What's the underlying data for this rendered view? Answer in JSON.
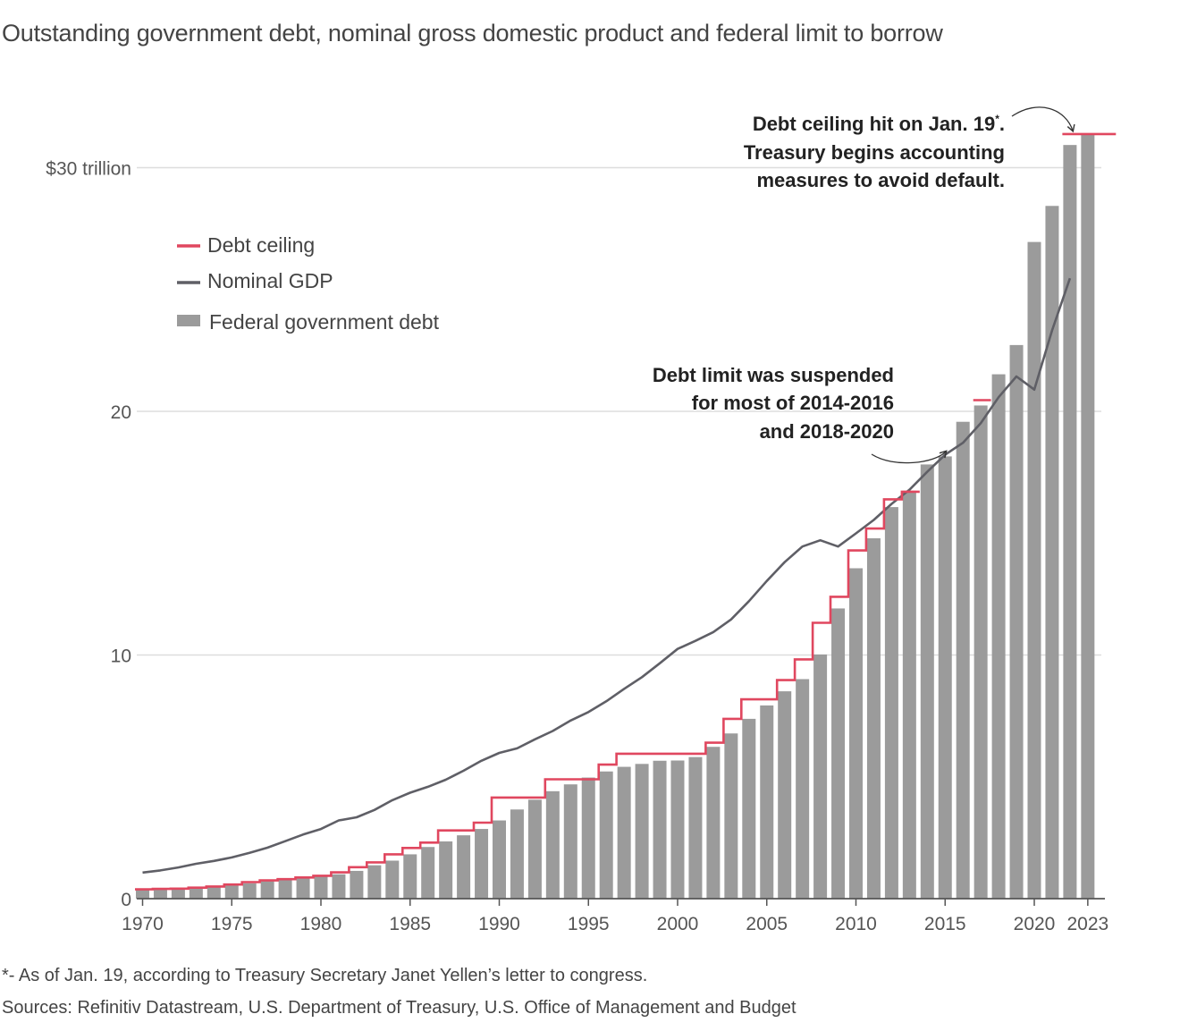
{
  "chart_data": {
    "type": "bar",
    "title": "Outstanding government debt, nominal gross domestic product and federal limit to borrow",
    "ylim": [
      0,
      31
    ],
    "y_ticks": [
      {
        "value": 30,
        "label": "$30 trillion"
      },
      {
        "value": 20,
        "label": "20"
      },
      {
        "value": 10,
        "label": "10"
      },
      {
        "value": 0,
        "label": "0"
      }
    ],
    "x_ticks": [
      {
        "year": 1970,
        "label": "1970"
      },
      {
        "year": 1975,
        "label": "1975"
      },
      {
        "year": 1980,
        "label": "1980"
      },
      {
        "year": 1985,
        "label": "1985"
      },
      {
        "year": 1990,
        "label": "1990"
      },
      {
        "year": 1995,
        "label": "1995"
      },
      {
        "year": 2000,
        "label": "2000"
      },
      {
        "year": 2005,
        "label": "2005"
      },
      {
        "year": 2010,
        "label": "2010"
      },
      {
        "year": 2015,
        "label": "2015"
      },
      {
        "year": 2020,
        "label": "2020"
      },
      {
        "year": 2023,
        "label": "2023"
      }
    ],
    "grid": true,
    "legend_position": "top-left",
    "colors": {
      "debt_ceiling": "#e0475f",
      "nominal_gdp": "#5f5f66",
      "federal_debt": "#9b9b9b",
      "grid": "#dddddd",
      "axis": "#555555"
    },
    "series": [
      {
        "name": "Federal government debt",
        "kind": "bar",
        "x": [
          1970,
          1971,
          1972,
          1973,
          1974,
          1975,
          1976,
          1977,
          1978,
          1979,
          1980,
          1981,
          1982,
          1983,
          1984,
          1985,
          1986,
          1987,
          1988,
          1989,
          1990,
          1991,
          1992,
          1993,
          1994,
          1995,
          1996,
          1997,
          1998,
          1999,
          2000,
          2001,
          2002,
          2003,
          2004,
          2005,
          2006,
          2007,
          2008,
          2009,
          2010,
          2011,
          2012,
          2013,
          2014,
          2015,
          2016,
          2017,
          2018,
          2019,
          2020,
          2021,
          2022,
          2023
        ],
        "values": [
          0.38,
          0.41,
          0.44,
          0.47,
          0.48,
          0.54,
          0.63,
          0.71,
          0.78,
          0.83,
          0.91,
          1.0,
          1.14,
          1.37,
          1.56,
          1.82,
          2.12,
          2.35,
          2.6,
          2.86,
          3.21,
          3.66,
          4.06,
          4.41,
          4.69,
          4.97,
          5.22,
          5.41,
          5.53,
          5.66,
          5.67,
          5.81,
          6.23,
          6.78,
          7.38,
          7.93,
          8.51,
          9.01,
          10.02,
          11.91,
          13.56,
          14.79,
          16.07,
          16.74,
          17.82,
          18.15,
          19.57,
          20.24,
          21.52,
          22.72,
          26.95,
          28.43,
          30.93,
          31.4
        ]
      },
      {
        "name": "Nominal GDP",
        "kind": "line",
        "x": [
          1970,
          1971,
          1972,
          1973,
          1974,
          1975,
          1976,
          1977,
          1978,
          1979,
          1980,
          1981,
          1982,
          1983,
          1984,
          1985,
          1986,
          1987,
          1988,
          1989,
          1990,
          1991,
          1992,
          1993,
          1994,
          1995,
          1996,
          1997,
          1998,
          1999,
          2000,
          2001,
          2002,
          2003,
          2004,
          2005,
          2006,
          2007,
          2008,
          2009,
          2010,
          2011,
          2012,
          2013,
          2014,
          2015,
          2016,
          2017,
          2018,
          2019,
          2020,
          2021,
          2022
        ],
        "values": [
          1.07,
          1.16,
          1.28,
          1.43,
          1.55,
          1.69,
          1.88,
          2.09,
          2.36,
          2.63,
          2.86,
          3.21,
          3.34,
          3.64,
          4.04,
          4.35,
          4.59,
          4.88,
          5.25,
          5.66,
          5.98,
          6.17,
          6.54,
          6.88,
          7.31,
          7.66,
          8.1,
          8.61,
          9.09,
          9.66,
          10.25,
          10.58,
          10.94,
          11.46,
          12.21,
          13.04,
          13.81,
          14.45,
          14.71,
          14.45,
          14.99,
          15.54,
          16.2,
          16.78,
          17.52,
          18.22,
          18.71,
          19.52,
          20.58,
          21.43,
          20.89,
          23.32,
          25.46
        ]
      },
      {
        "name": "Debt ceiling",
        "kind": "step",
        "segments": [
          {
            "from": 1970,
            "to": 1971,
            "value": 0.38
          },
          {
            "from": 1971,
            "to": 1972,
            "value": 0.4
          },
          {
            "from": 1972,
            "to": 1973,
            "value": 0.41
          },
          {
            "from": 1973,
            "to": 1974,
            "value": 0.45
          },
          {
            "from": 1974,
            "to": 1975,
            "value": 0.5
          },
          {
            "from": 1975,
            "to": 1976,
            "value": 0.58
          },
          {
            "from": 1976,
            "to": 1977,
            "value": 0.68
          },
          {
            "from": 1977,
            "to": 1978,
            "value": 0.75
          },
          {
            "from": 1978,
            "to": 1979,
            "value": 0.8
          },
          {
            "from": 1979,
            "to": 1980,
            "value": 0.87
          },
          {
            "from": 1980,
            "to": 1981,
            "value": 0.94
          },
          {
            "from": 1981,
            "to": 1982,
            "value": 1.08
          },
          {
            "from": 1982,
            "to": 1983,
            "value": 1.29
          },
          {
            "from": 1983,
            "to": 1984,
            "value": 1.49
          },
          {
            "from": 1984,
            "to": 1985,
            "value": 1.82
          },
          {
            "from": 1985,
            "to": 1986,
            "value": 2.08
          },
          {
            "from": 1986,
            "to": 1987,
            "value": 2.3
          },
          {
            "from": 1987,
            "to": 1989,
            "value": 2.8
          },
          {
            "from": 1989,
            "to": 1990,
            "value": 3.12
          },
          {
            "from": 1990,
            "to": 1993,
            "value": 4.15
          },
          {
            "from": 1993,
            "to": 1996,
            "value": 4.9
          },
          {
            "from": 1996,
            "to": 1997,
            "value": 5.5
          },
          {
            "from": 1997,
            "to": 2002,
            "value": 5.95
          },
          {
            "from": 2002,
            "to": 2003,
            "value": 6.4
          },
          {
            "from": 2003,
            "to": 2004,
            "value": 7.38
          },
          {
            "from": 2004,
            "to": 2006,
            "value": 8.18
          },
          {
            "from": 2006,
            "to": 2007,
            "value": 8.97
          },
          {
            "from": 2007,
            "to": 2008,
            "value": 9.82
          },
          {
            "from": 2008,
            "to": 2009,
            "value": 11.32
          },
          {
            "from": 2009,
            "to": 2010,
            "value": 12.39
          },
          {
            "from": 2010,
            "to": 2011,
            "value": 14.29
          },
          {
            "from": 2011,
            "to": 2012,
            "value": 15.19
          },
          {
            "from": 2012,
            "to": 2013,
            "value": 16.39
          },
          {
            "from": 2013,
            "to": 2014,
            "value": 16.7
          },
          {
            "from": 2017,
            "to": 2018,
            "value": 20.46
          },
          {
            "from": 2022,
            "to": 2025,
            "value": 31.38
          }
        ]
      }
    ],
    "annotations": {
      "ceiling_hit_lines": [
        "Debt ceiling hit on Jan. 19",
        "*",
        ".",
        "Treasury begins accounting",
        "measures to avoid default."
      ],
      "suspended_lines": [
        "Debt limit was suspended",
        "for most of 2014-2016",
        "and 2018-2020"
      ]
    }
  },
  "footnote": "*- As of Jan. 19, according to Treasury Secretary Janet Yellen’s letter to congress.",
  "sources": "Sources: Refinitiv Datastream, U.S. Department of Treasury, U.S. Office of Management and Budget"
}
